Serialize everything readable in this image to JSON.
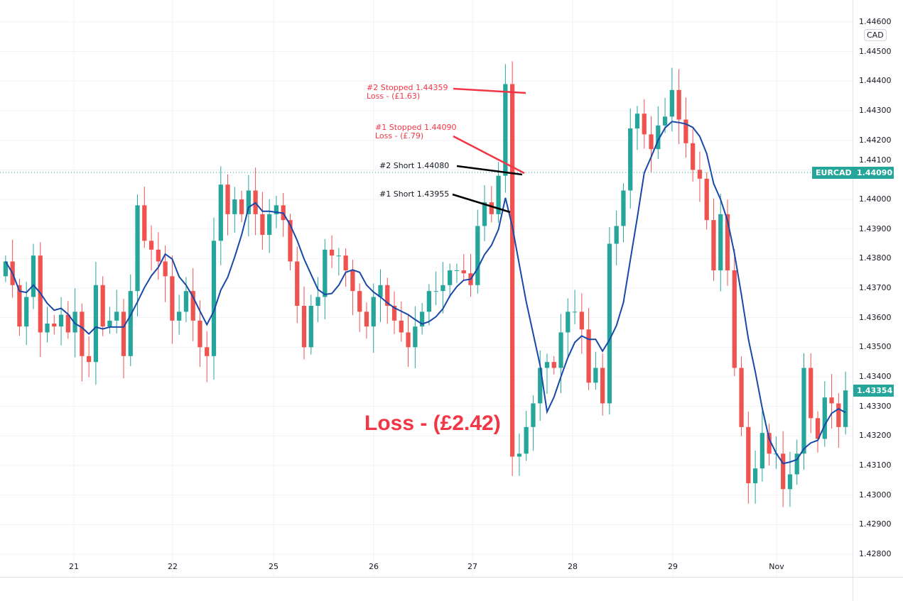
{
  "chart_data": {
    "type": "candlestick",
    "symbol": "EURCAD",
    "currency": "CAD",
    "last_price": "1.44090",
    "current_price": "1.43354",
    "ylim": [
      1.428,
      1.446
    ],
    "y_ticks": [
      "1.44600",
      "1.44500",
      "1.44400",
      "1.44300",
      "1.44200",
      "1.44100",
      "1.44000",
      "1.43900",
      "1.43800",
      "1.43700",
      "1.43600",
      "1.43500",
      "1.43400",
      "1.43300",
      "1.43200",
      "1.43100",
      "1.43000",
      "1.42900",
      "1.42800"
    ],
    "x_ticks": [
      "21",
      "22",
      "25",
      "26",
      "27",
      "28",
      "29",
      "Nov"
    ],
    "closes": [
      1.4379,
      1.4371,
      1.4357,
      1.4367,
      1.4381,
      1.4355,
      1.4358,
      1.4357,
      1.4361,
      1.4355,
      1.4362,
      1.4347,
      1.4345,
      1.4371,
      1.4357,
      1.4359,
      1.4362,
      1.4347,
      1.4369,
      1.4398,
      1.4386,
      1.4383,
      1.4379,
      1.4374,
      1.4359,
      1.4362,
      1.4369,
      1.4359,
      1.435,
      1.4347,
      1.4386,
      1.4405,
      1.4395,
      1.44,
      1.4395,
      1.4403,
      1.4395,
      1.4388,
      1.4395,
      1.4398,
      1.4393,
      1.4379,
      1.4364,
      1.435,
      1.4364,
      1.4367,
      1.4383,
      1.4381,
      1.4381,
      1.4376,
      1.4369,
      1.4362,
      1.4357,
      1.4367,
      1.4371,
      1.4364,
      1.4359,
      1.4355,
      1.435,
      1.4357,
      1.4362,
      1.4369,
      1.4369,
      1.4371,
      1.4376,
      1.4376,
      1.4375,
      1.4371,
      1.4391,
      1.4399,
      1.4395,
      1.4408,
      1.4439,
      1.4313,
      1.4314,
      1.4323,
      1.4331,
      1.4343,
      1.4345,
      1.4343,
      1.4355,
      1.4362,
      1.4362,
      1.4356,
      1.4338,
      1.4343,
      1.4331,
      1.4385,
      1.4391,
      1.4403,
      1.4424,
      1.4429,
      1.4422,
      1.4417,
      1.4425,
      1.4428,
      1.4437,
      1.4427,
      1.4419,
      1.441,
      1.4407,
      1.4393,
      1.4376,
      1.4395,
      1.4376,
      1.4343,
      1.4323,
      1.4304,
      1.4309,
      1.4321,
      1.4314,
      1.4314,
      1.4302,
      1.4307,
      1.4314,
      1.4343,
      1.4326,
      1.4319,
      1.4333,
      1.4331,
      1.4323,
      1.43354
    ],
    "moving_average": {
      "type": "SMA",
      "period": 6,
      "color": "#1848a8"
    },
    "colors": {
      "up": "#26a69a",
      "down": "#ef5350"
    },
    "annotations": {
      "stop2_line1": "#2 Stopped 1.44359",
      "stop2_line2": "Loss - (£1.63)",
      "stop1_line1": "#1 Stopped 1.44090",
      "stop1_line2": "Loss - (£.79)",
      "short2": "#2 Short 1.44080",
      "short1": "#1 Short 1.43955",
      "total_loss": "Loss - (£2.42)"
    }
  }
}
